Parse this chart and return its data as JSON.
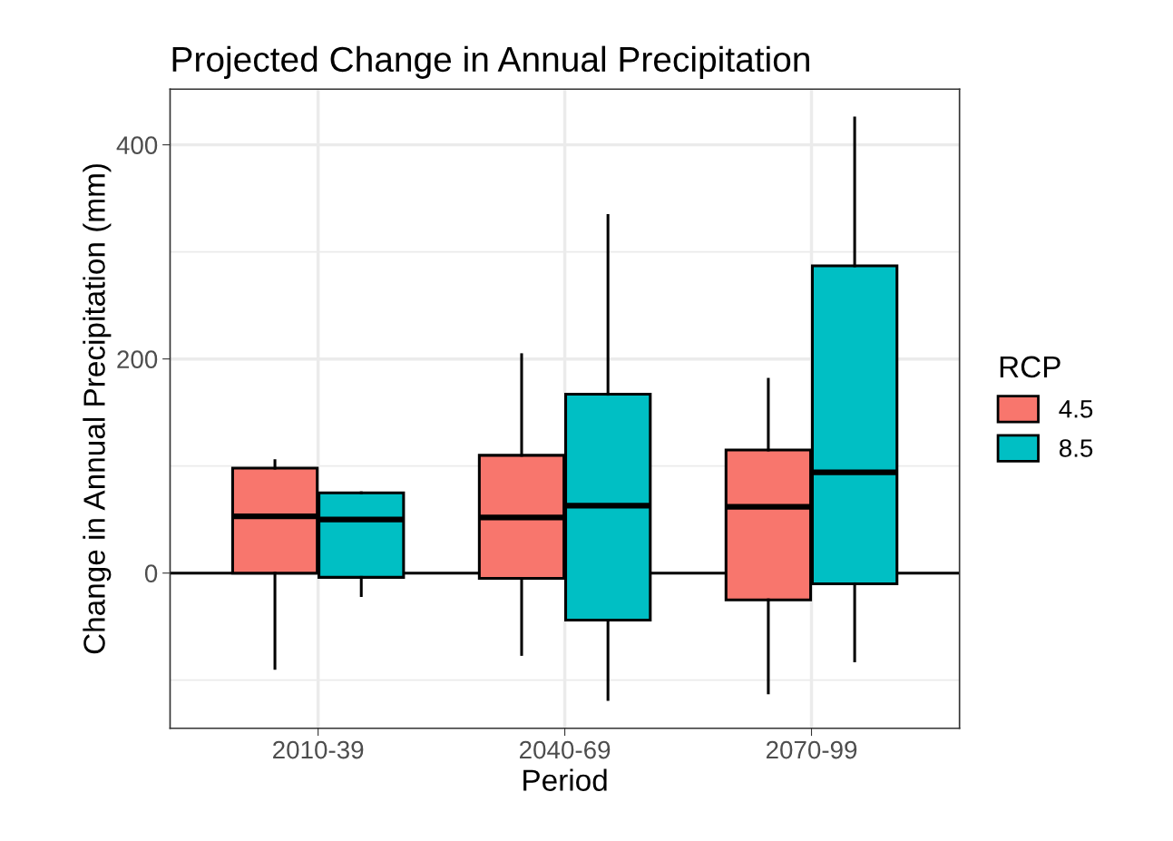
{
  "chart_data": {
    "type": "box",
    "title": "Projected Change in Annual Precipitation",
    "xlabel": "Period",
    "ylabel": "Change in Annual Precipitation (mm)",
    "legend_title": "RCP",
    "categories": [
      "2010-39",
      "2040-69",
      "2070-99"
    ],
    "series": [
      {
        "name": "4.5",
        "color": "#f8766d",
        "boxes": [
          {
            "low": -89,
            "q1": 0,
            "median": 53,
            "q3": 98,
            "high": 105
          },
          {
            "low": -76,
            "q1": -5,
            "median": 52,
            "q3": 110,
            "high": 204
          },
          {
            "low": -112,
            "q1": -25,
            "median": 62,
            "q3": 115,
            "high": 181
          }
        ]
      },
      {
        "name": "8.5",
        "color": "#00bfc4",
        "boxes": [
          {
            "low": -21,
            "q1": -4,
            "median": 50,
            "q3": 75,
            "high": 75
          },
          {
            "low": -118,
            "q1": -44,
            "median": 63,
            "q3": 167,
            "high": 334
          },
          {
            "low": -82,
            "q1": -10,
            "median": 94,
            "q3": 287,
            "high": 425
          }
        ]
      }
    ],
    "ylim": [
      -145,
      452
    ],
    "yticks": [
      {
        "value": -100,
        "label": null
      },
      0,
      {
        "value": 100,
        "label": null
      },
      200,
      {
        "value": 300,
        "label": null
      },
      400
    ],
    "ref_lines": [
      {
        "axis": "y",
        "value": 0,
        "color": "#000000"
      }
    ],
    "grid": true,
    "legend": "right"
  }
}
